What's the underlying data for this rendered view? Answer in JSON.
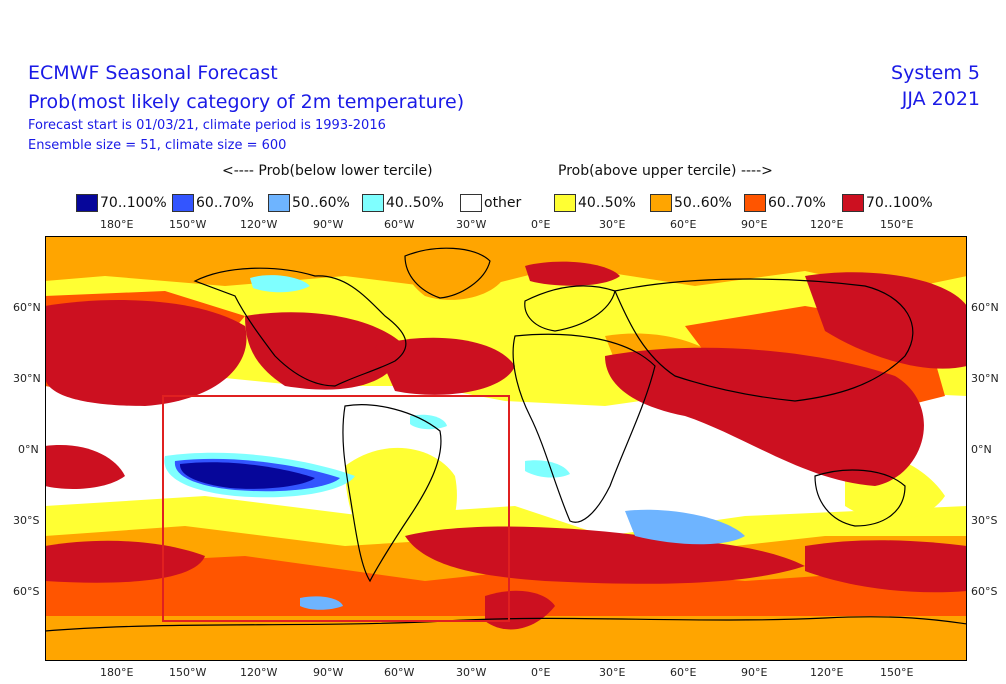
{
  "header": {
    "title": "ECMWF Seasonal Forecast",
    "subtitle": "Prob(most likely category of 2m temperature)",
    "forecast_info": "Forecast start is 01/03/21, climate period is 1993-2016",
    "ensemble_info": "Ensemble size = 51, climate size = 600",
    "system": "System 5",
    "season": "JJA 2021"
  },
  "legend": {
    "below_header": "<---- Prob(below lower tercile)",
    "above_header": "Prob(above upper tercile) ---->",
    "items": [
      {
        "label": "70..100%",
        "color": "#06069a"
      },
      {
        "label": "60..70%",
        "color": "#3355ff"
      },
      {
        "label": "50..60%",
        "color": "#6eb4ff"
      },
      {
        "label": "40..50%",
        "color": "#7fffff"
      },
      {
        "label": "other",
        "color": "#ffffff"
      },
      {
        "label": "40..50%",
        "color": "#ffff33"
      },
      {
        "label": "50..60%",
        "color": "#ffa500"
      },
      {
        "label": "60..70%",
        "color": "#ff5500"
      },
      {
        "label": "70..100%",
        "color": "#cc1020"
      }
    ]
  },
  "axes": {
    "lon_labels": [
      "180°E",
      "150°W",
      "120°W",
      "90°W",
      "60°W",
      "30°W",
      "0°E",
      "30°E",
      "60°E",
      "90°E",
      "120°E",
      "150°E"
    ],
    "lat_labels": [
      "60°N",
      "30°N",
      "0°N",
      "30°S",
      "60°S"
    ]
  },
  "map": {
    "highlight_box_color": "#e02020"
  }
}
